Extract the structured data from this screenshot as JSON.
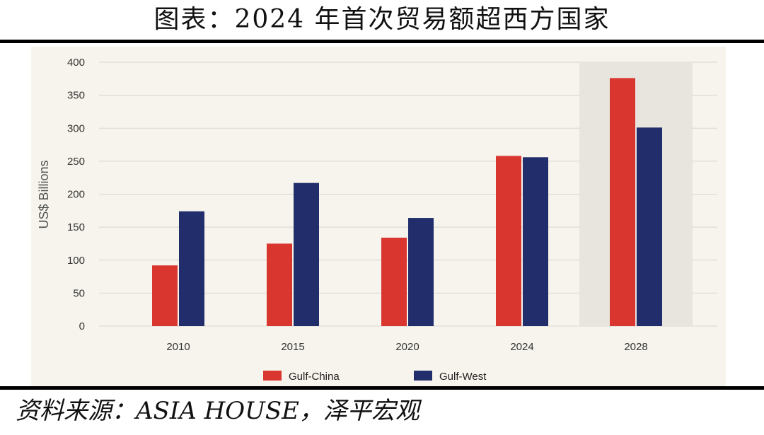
{
  "header": {
    "title": "图表：2024 年首次贸易额超西方国家"
  },
  "footer": {
    "source": "资料来源：ASIA HOUSE，泽平宏观"
  },
  "colors": {
    "china": "#d8362f",
    "west": "#222e6b",
    "highlight": "#e8e5df",
    "grid": "#d9d6cf"
  },
  "chart_data": {
    "type": "bar",
    "title": "",
    "xlabel": "",
    "ylabel": "US$ Billions",
    "categories": [
      "2010",
      "2015",
      "2020",
      "2024",
      "2028"
    ],
    "series": [
      {
        "name": "Gulf-China",
        "values": [
          92,
          125,
          134,
          258,
          376
        ]
      },
      {
        "name": "Gulf-West",
        "values": [
          174,
          217,
          164,
          256,
          301
        ]
      }
    ],
    "ylim": [
      0,
      400
    ],
    "yticks": [
      0,
      50,
      100,
      150,
      200,
      250,
      300,
      350,
      400
    ],
    "highlighted_category": "2028",
    "legend": "bottom-center",
    "grid": true
  }
}
